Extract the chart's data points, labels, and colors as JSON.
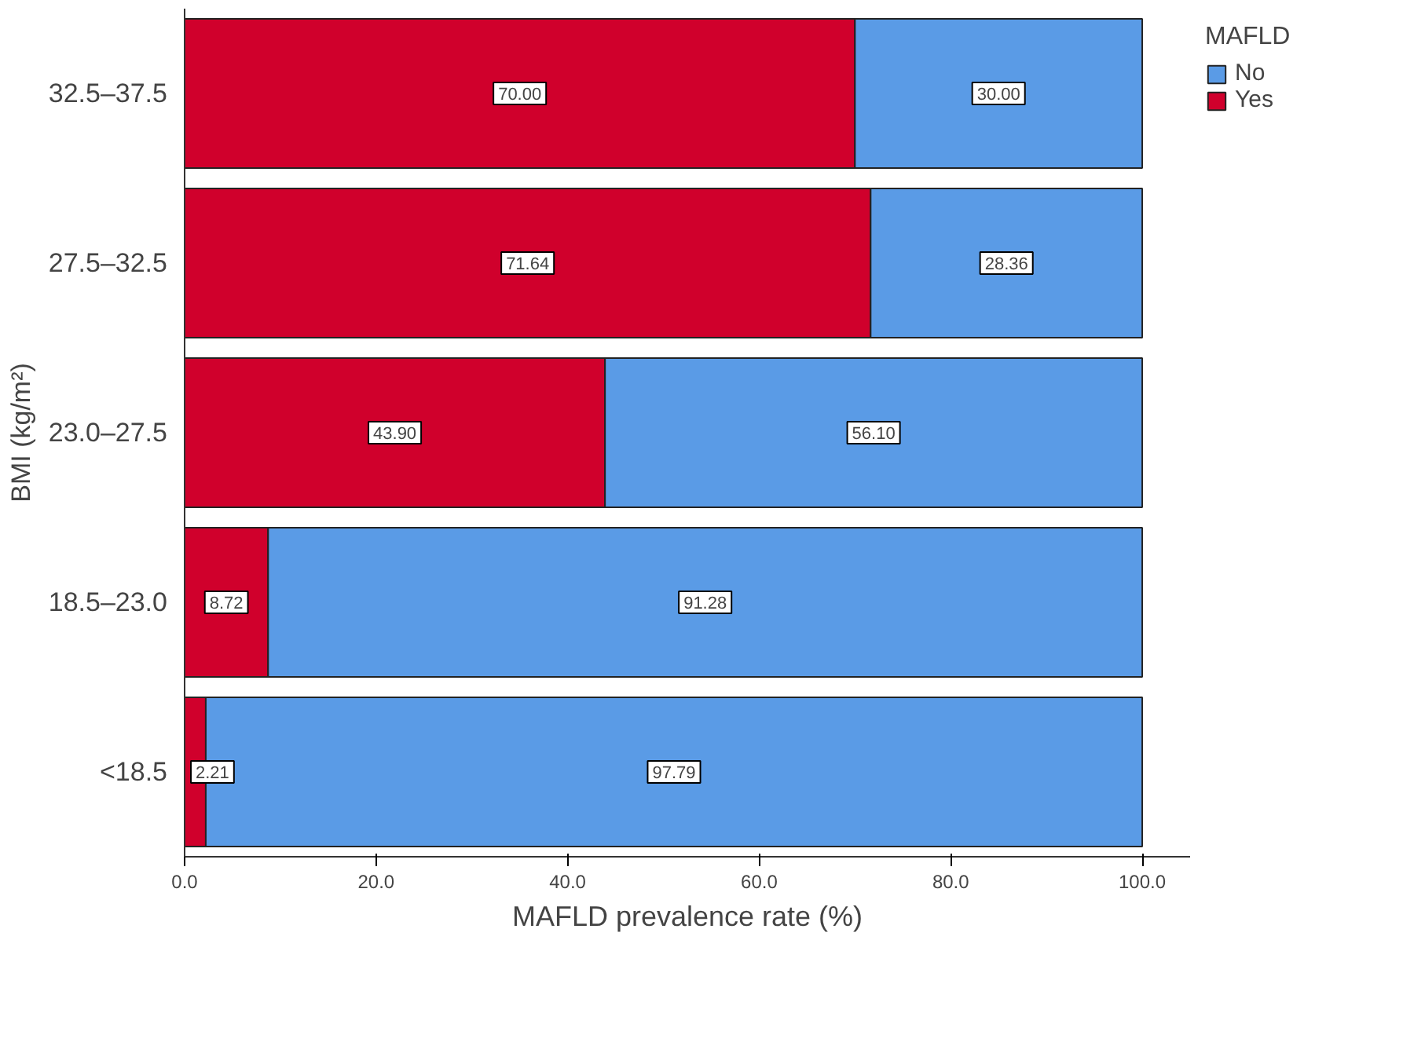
{
  "chart_data": {
    "type": "bar",
    "orientation": "horizontal",
    "stacked": true,
    "xlabel": "MAFLD prevalence rate (%)",
    "ylabel": "BMI (kg/m²)",
    "legend_title": "MAFLD",
    "legend": "top right",
    "grid": false,
    "categories": [
      "32.5–37.5",
      "27.5–32.5",
      "23.0–27.5",
      "18.5–23.0",
      "<18.5"
    ],
    "xlim": [
      0,
      105
    ],
    "xticks": [
      {
        "value": 0,
        "label": "0.0"
      },
      {
        "value": 20,
        "label": "20.0"
      },
      {
        "value": 40,
        "label": "40.0"
      },
      {
        "value": 60,
        "label": "60.0"
      },
      {
        "value": 80,
        "label": "80.0"
      },
      {
        "value": 100,
        "label": "100.0"
      }
    ],
    "series": [
      {
        "name": "Yes",
        "color": "#d0002c",
        "values": [
          70.0,
          71.64,
          43.9,
          8.72,
          2.21
        ],
        "value_labels": [
          "70.00",
          "71.64",
          "43.90",
          "8.72",
          "2.21"
        ]
      },
      {
        "name": "No",
        "color": "#5a9be6",
        "values": [
          30.0,
          28.36,
          56.1,
          91.28,
          97.79
        ],
        "value_labels": [
          "30.00",
          "28.36",
          "56.10",
          "91.28",
          "97.79"
        ]
      }
    ]
  }
}
